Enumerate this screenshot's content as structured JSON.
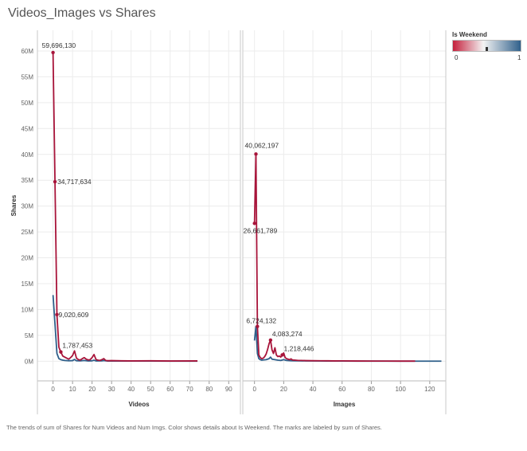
{
  "chart_data": {
    "type": "line",
    "title": "Videos_Images vs Shares",
    "caption": "The trends of sum of Shares for Num Videos and Num Imgs.  Color shows details about Is Weekend.  The marks are labeled by sum of Shares.",
    "ylabel": "Shares",
    "ylim": [
      -3800000,
      64000000
    ],
    "y_ticks": [
      {
        "v": 0,
        "label": "0M"
      },
      {
        "v": 5000000,
        "label": "5M"
      },
      {
        "v": 10000000,
        "label": "10M"
      },
      {
        "v": 15000000,
        "label": "15M"
      },
      {
        "v": 20000000,
        "label": "20M"
      },
      {
        "v": 25000000,
        "label": "25M"
      },
      {
        "v": 30000000,
        "label": "30M"
      },
      {
        "v": 35000000,
        "label": "35M"
      },
      {
        "v": 40000000,
        "label": "40M"
      },
      {
        "v": 45000000,
        "label": "45M"
      },
      {
        "v": 50000000,
        "label": "50M"
      },
      {
        "v": 55000000,
        "label": "55M"
      },
      {
        "v": 60000000,
        "label": "60M"
      }
    ],
    "grid": true,
    "legend": {
      "title": "Is Weekend",
      "placement": "top-right",
      "min_label": "0",
      "max_label": "1",
      "color_min": "#c41e3a",
      "color_mid": "#f3f3f3",
      "color_max": "#2e5f8a"
    },
    "panels": [
      {
        "name": "videos",
        "xlabel": "Videos",
        "xlim": [
          -8,
          96
        ],
        "x_ticks": [
          0,
          10,
          20,
          30,
          40,
          50,
          60,
          70,
          80,
          90
        ],
        "series": [
          {
            "name": "0",
            "color": "#a8143a",
            "x": [
              0,
              1,
              2,
              3,
              4,
              5,
              6,
              7,
              8,
              9,
              10,
              11,
              12,
              13,
              14,
              15,
              16,
              17,
              18,
              19,
              20,
              21,
              22,
              23,
              24,
              25,
              26,
              27,
              28,
              30,
              35,
              40,
              50,
              60,
              74
            ],
            "y": [
              59696130,
              34717634,
              9020609,
              2700000,
              1787453,
              1000000,
              800000,
              600000,
              400000,
              700000,
              1100000,
              2000000,
              600000,
              300000,
              250000,
              500000,
              700000,
              400000,
              250000,
              300000,
              700000,
              1300000,
              350000,
              200000,
              150000,
              300000,
              500000,
              150000,
              100000,
              120000,
              80000,
              60000,
              80000,
              40000,
              60000
            ]
          },
          {
            "name": "1",
            "color": "#2e5f8a",
            "x": [
              0,
              1,
              2,
              3,
              4,
              5,
              6,
              8,
              10,
              11,
              12,
              14,
              16,
              18,
              20,
              21,
              22,
              25,
              26,
              28,
              30,
              40,
              50,
              60,
              74
            ],
            "y": [
              12800000,
              7200000,
              1500000,
              500000,
              300000,
              200000,
              150000,
              100000,
              120000,
              350000,
              100000,
              80000,
              150000,
              60000,
              80000,
              200000,
              60000,
              80000,
              140000,
              40000,
              40000,
              30000,
              30000,
              20000,
              20000
            ]
          }
        ],
        "data_labels": [
          {
            "text": "59,696,130",
            "x": 0,
            "y": 59696130
          },
          {
            "text": "34,717,634",
            "x": 1,
            "y": 34717634
          },
          {
            "text": "9,020,609",
            "x": 2,
            "y": 9020609
          },
          {
            "text": "1,787,453",
            "x": 4,
            "y": 1787453
          }
        ]
      },
      {
        "name": "images",
        "xlabel": "Images",
        "xlim": [
          -8,
          131
        ],
        "x_ticks": [
          0,
          20,
          40,
          60,
          80,
          100,
          120
        ],
        "series": [
          {
            "name": "0",
            "color": "#a8143a",
            "x": [
              0,
              1,
              2,
              3,
              4,
              5,
              6,
              7,
              8,
              9,
              10,
              11,
              12,
              13,
              14,
              15,
              16,
              17,
              18,
              19,
              20,
              21,
              22,
              23,
              24,
              25,
              26,
              28,
              30,
              32,
              35,
              40,
              45,
              50,
              55,
              60,
              70,
              80,
              90,
              100,
              110
            ],
            "y": [
              26661789,
              40062197,
              6724132,
              1200000,
              700000,
              500000,
              600000,
              900000,
              1400000,
              2300000,
              3400000,
              4083274,
              2200000,
              1500000,
              2600000,
              1200000,
              900000,
              1000000,
              800000,
              1218446,
              1600000,
              700000,
              500000,
              400000,
              300000,
              450000,
              250000,
              200000,
              150000,
              150000,
              120000,
              100000,
              90000,
              80000,
              60000,
              70000,
              40000,
              30000,
              30000,
              20000,
              20000
            ]
          },
          {
            "name": "1",
            "color": "#2e5f8a",
            "x": [
              0,
              1,
              2,
              3,
              4,
              5,
              6,
              8,
              10,
              11,
              12,
              14,
              16,
              18,
              20,
              22,
              25,
              30,
              35,
              40,
              50,
              60,
              70,
              80,
              100,
              110,
              128
            ],
            "y": [
              4000000,
              6724132,
              1500000,
              500000,
              300000,
              200000,
              250000,
              300000,
              500000,
              800000,
              400000,
              300000,
              200000,
              150000,
              300000,
              150000,
              100000,
              80000,
              60000,
              50000,
              40000,
              30000,
              20000,
              20000,
              15000,
              10000,
              10000
            ]
          }
        ],
        "data_labels": [
          {
            "text": "40,062,197",
            "x": 1,
            "y": 40062197
          },
          {
            "text": "26,661,789",
            "x": 0,
            "y": 26661789
          },
          {
            "text": "6,724,132",
            "x": 2,
            "y": 6724132
          },
          {
            "text": "4,083,274",
            "x": 11,
            "y": 4083274
          },
          {
            "text": "1,218,446",
            "x": 19,
            "y": 1218446
          }
        ]
      }
    ]
  }
}
